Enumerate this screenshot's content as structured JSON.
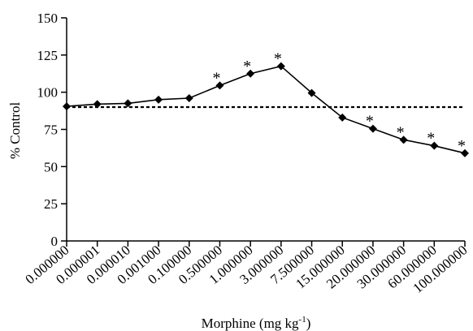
{
  "chart_data": {
    "type": "line",
    "xlabel": "Morphine (mg kg",
    "xlabel_superscript": "-1",
    "xlabel_suffix": ")",
    "ylabel": "% Control",
    "ylim": [
      0,
      150
    ],
    "yticks": [
      "0",
      "25",
      "50",
      "75",
      "100",
      "125",
      "150"
    ],
    "categories": [
      "0.000000",
      "0.000001",
      "0.000010",
      "0.001000",
      "0.100000",
      "0.500000",
      "1.000000",
      "3.000000",
      "7.500000",
      "15.000000",
      "20.000000",
      "30.000000",
      "60.000000",
      "100.000000"
    ],
    "values": [
      90.5,
      92,
      92.5,
      95,
      96,
      104.5,
      112.5,
      117.5,
      99.5,
      83,
      75.5,
      68,
      64,
      59
    ],
    "significance_marker": "*",
    "significant_indices": [
      5,
      6,
      7,
      10,
      11,
      12,
      13
    ],
    "reference_line": 90,
    "grid": false,
    "legend": "none",
    "line_color": "#000000",
    "marker": "diamond"
  }
}
